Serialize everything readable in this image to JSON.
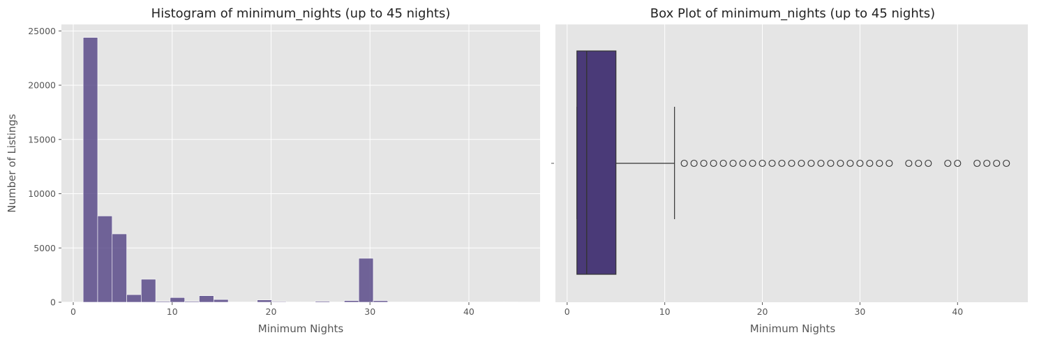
{
  "chart_data": [
    {
      "type": "bar",
      "subtype": "histogram",
      "title": "Histogram of minimum_nights (up to 45 nights)",
      "xlabel": "Minimum Nights",
      "ylabel": "Number of Listings",
      "xlim": [
        -1.2,
        47.2
      ],
      "ylim": [
        0,
        25600
      ],
      "xticks": [
        0,
        10,
        20,
        30,
        40
      ],
      "yticks": [
        0,
        5000,
        10000,
        15000,
        20000,
        25000
      ],
      "grid": true,
      "bar_color": "#5b4b8a",
      "bin_start": 1,
      "bin_width": 1.4667,
      "values": [
        24400,
        7950,
        6300,
        700,
        2120,
        80,
        430,
        80,
        600,
        250,
        20,
        20,
        210,
        60,
        20,
        20,
        90,
        20,
        150,
        4050,
        140,
        20,
        20,
        20,
        20,
        20,
        20,
        20,
        20,
        20
      ]
    },
    {
      "type": "box",
      "title": "Box Plot of minimum_nights (up to 45 nights)",
      "xlabel": "Minimum Nights",
      "xlim": [
        -1.2,
        47.2
      ],
      "xticks": [
        0,
        10,
        20,
        30,
        40
      ],
      "grid": true,
      "box_color": "#4a3a78",
      "whisker_low": 1,
      "q1": 1,
      "median": 2,
      "q3": 5,
      "whisker_high": 11,
      "outliers": [
        12,
        13,
        14,
        15,
        16,
        17,
        18,
        19,
        20,
        21,
        22,
        23,
        24,
        25,
        26,
        27,
        28,
        29,
        30,
        31,
        32,
        33,
        35,
        36,
        37,
        39,
        40,
        42,
        43,
        44,
        45
      ]
    }
  ]
}
